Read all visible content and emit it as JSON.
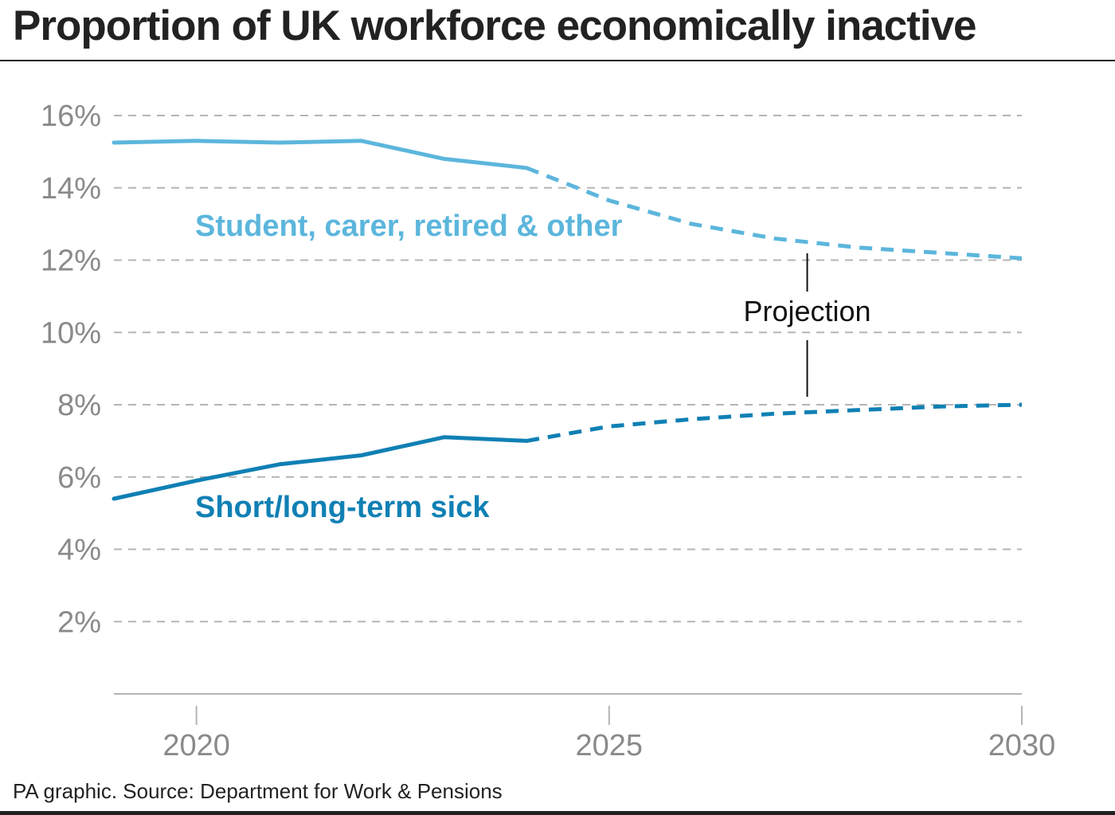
{
  "title": "Proportion of UK workforce economically inactive",
  "source": "PA graphic. Source: Department for Work & Pensions",
  "colors": {
    "student_series": "#5cb6dc",
    "sick_series": "#1080b4",
    "grid": "#b5b5b5",
    "tick_text": "#8a8a8a",
    "text": "#222222"
  },
  "chart_data": {
    "type": "line",
    "title": "Proportion of UK workforce economically inactive",
    "xlabel": "",
    "ylabel": "",
    "xlim": [
      2019,
      2030
    ],
    "ylim": [
      0,
      16
    ],
    "x_ticks": [
      2020,
      2025,
      2030
    ],
    "x_tick_labels": [
      "2020",
      "2025",
      "2030"
    ],
    "y_ticks": [
      2,
      4,
      6,
      8,
      10,
      12,
      14,
      16
    ],
    "y_tick_labels": [
      "2%",
      "4%",
      "6%",
      "8%",
      "10%",
      "12%",
      "14%",
      "16%"
    ],
    "grid": "horizontal dashed",
    "series": [
      {
        "name": "Student, carer, retired & other",
        "color": "#5cb6dc",
        "actual": {
          "x": [
            2019,
            2020,
            2021,
            2022,
            2023,
            2024
          ],
          "y": [
            15.25,
            15.3,
            15.25,
            15.3,
            14.8,
            14.55
          ]
        },
        "projection": {
          "x": [
            2024,
            2025,
            2026,
            2027,
            2028,
            2029,
            2030
          ],
          "y": [
            14.55,
            13.65,
            13.0,
            12.6,
            12.35,
            12.2,
            12.05
          ]
        }
      },
      {
        "name": "Short/long-term sick",
        "color": "#1080b4",
        "actual": {
          "x": [
            2019,
            2020,
            2021,
            2022,
            2023,
            2024
          ],
          "y": [
            5.4,
            5.9,
            6.35,
            6.6,
            7.1,
            7.0
          ]
        },
        "projection": {
          "x": [
            2024,
            2025,
            2026,
            2027,
            2028,
            2029,
            2030
          ],
          "y": [
            7.0,
            7.4,
            7.6,
            7.75,
            7.85,
            7.95,
            8.0
          ]
        }
      }
    ],
    "annotations": [
      {
        "text": "Projection",
        "x": 2027.4
      }
    ]
  }
}
